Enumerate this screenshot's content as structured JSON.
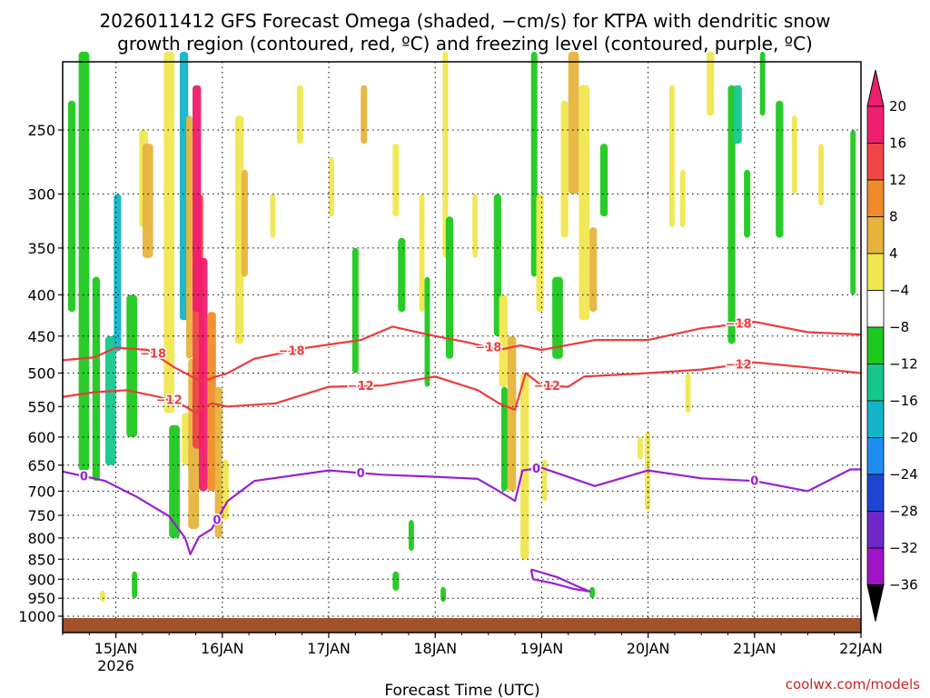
{
  "chart_data": {
    "type": "heatmap",
    "title_line1": "2026011412 GFS Forecast Omega (shaded, −cm/s) for KTPA with dendritic snow",
    "title_line2": "growth region (contoured, red, ºC) and freezing level (contoured, purple, ºC)",
    "xlabel": "Forecast Time (UTC)",
    "ylabel": "",
    "credit": "coolwx.com/models",
    "x_ticks": [
      {
        "label": "15JAN",
        "sub": "2026",
        "day": 15
      },
      {
        "label": "16JAN",
        "sub": "",
        "day": 16
      },
      {
        "label": "17JAN",
        "sub": "",
        "day": 17
      },
      {
        "label": "18JAN",
        "sub": "",
        "day": 18
      },
      {
        "label": "19JAN",
        "sub": "",
        "day": 19
      },
      {
        "label": "20JAN",
        "sub": "",
        "day": 20
      },
      {
        "label": "21JAN",
        "sub": "",
        "day": 21
      },
      {
        "label": "22JAN",
        "sub": "",
        "day": 22
      }
    ],
    "xlim_days": [
      14.5,
      22.0
    ],
    "y_ticks": [
      "250",
      "300",
      "350",
      "400",
      "450",
      "500",
      "550",
      "600",
      "650",
      "700",
      "750",
      "800",
      "850",
      "900",
      "950",
      "1000"
    ],
    "ylim_hpa": [
      200,
      1025
    ],
    "colorbar": {
      "labels": [
        "20",
        "16",
        "12",
        "8",
        "4",
        "−4",
        "−8",
        "−12",
        "−16",
        "−20",
        "−24",
        "−28",
        "−32",
        "−36"
      ],
      "colors": [
        "#f01e6e",
        "#f04646",
        "#f08c28",
        "#e6b43c",
        "#f0e650",
        "#ffffff",
        "#1ec81e",
        "#14c88c",
        "#14b4c8",
        "#1e8cf0",
        "#1e46d2",
        "#6e28c8",
        "#a014c8",
        "#a0a0a0"
      ],
      "top_color": "#f01e6e",
      "bottom_color": "#000000"
    },
    "freezing_level": {
      "color": "#9a1fd0",
      "label": "0",
      "points": [
        [
          14.5,
          662
        ],
        [
          14.9,
          680
        ],
        [
          15.2,
          712
        ],
        [
          15.5,
          752
        ],
        [
          15.65,
          800
        ],
        [
          15.7,
          838
        ],
        [
          15.78,
          798
        ],
        [
          15.9,
          780
        ],
        [
          16.05,
          720
        ],
        [
          16.3,
          680
        ],
        [
          17.0,
          660
        ],
        [
          17.5,
          668
        ],
        [
          18.0,
          672
        ],
        [
          18.4,
          676
        ],
        [
          18.6,
          700
        ],
        [
          18.75,
          720
        ],
        [
          18.82,
          660
        ],
        [
          19.0,
          655
        ],
        [
          19.5,
          690
        ],
        [
          20.0,
          660
        ],
        [
          20.5,
          675
        ],
        [
          21.0,
          680
        ],
        [
          21.5,
          700
        ],
        [
          21.9,
          658
        ],
        [
          22.0,
          658
        ]
      ],
      "lower_contour": [
        [
          18.9,
          875
        ],
        [
          19.15,
          895
        ],
        [
          19.35,
          920
        ],
        [
          19.45,
          932
        ],
        [
          19.3,
          925
        ],
        [
          19.1,
          910
        ],
        [
          18.92,
          900
        ],
        [
          18.9,
          875
        ]
      ],
      "labels_at_days": [
        14.7,
        17.3,
        18.95,
        21.0,
        15.95
      ]
    },
    "dgz_minus12": {
      "color": "#ee3b3b",
      "label": "−12",
      "points": [
        [
          14.5,
          535
        ],
        [
          14.8,
          528
        ],
        [
          15.1,
          525
        ],
        [
          15.4,
          535
        ],
        [
          15.6,
          545
        ],
        [
          15.75,
          560
        ],
        [
          15.9,
          545
        ],
        [
          16.05,
          550
        ],
        [
          16.5,
          545
        ],
        [
          17.0,
          520
        ],
        [
          17.5,
          518
        ],
        [
          18.0,
          505
        ],
        [
          18.4,
          525
        ],
        [
          18.6,
          545
        ],
        [
          18.75,
          555
        ],
        [
          18.85,
          500
        ],
        [
          19.0,
          518
        ],
        [
          19.25,
          520
        ],
        [
          19.4,
          505
        ],
        [
          20.0,
          500
        ],
        [
          20.5,
          495
        ],
        [
          21.0,
          485
        ],
        [
          21.5,
          492
        ],
        [
          22.0,
          500
        ]
      ],
      "labels_at_days": [
        15.5,
        17.3,
        19.05,
        20.85
      ]
    },
    "dgz_minus18": {
      "color": "#ee3b3b",
      "label": "−18",
      "points": [
        [
          14.5,
          482
        ],
        [
          14.8,
          478
        ],
        [
          15.0,
          465
        ],
        [
          15.3,
          468
        ],
        [
          15.55,
          492
        ],
        [
          15.8,
          512
        ],
        [
          16.05,
          500
        ],
        [
          16.3,
          480
        ],
        [
          16.8,
          465
        ],
        [
          17.3,
          455
        ],
        [
          17.6,
          438
        ],
        [
          18.0,
          450
        ],
        [
          18.3,
          458
        ],
        [
          18.6,
          468
        ],
        [
          18.8,
          462
        ],
        [
          19.0,
          468
        ],
        [
          19.5,
          455
        ],
        [
          20.0,
          455
        ],
        [
          20.5,
          440
        ],
        [
          21.0,
          432
        ],
        [
          21.5,
          445
        ],
        [
          22.0,
          448
        ]
      ],
      "labels_at_days": [
        15.35,
        16.65,
        18.5,
        20.85
      ]
    }
  }
}
